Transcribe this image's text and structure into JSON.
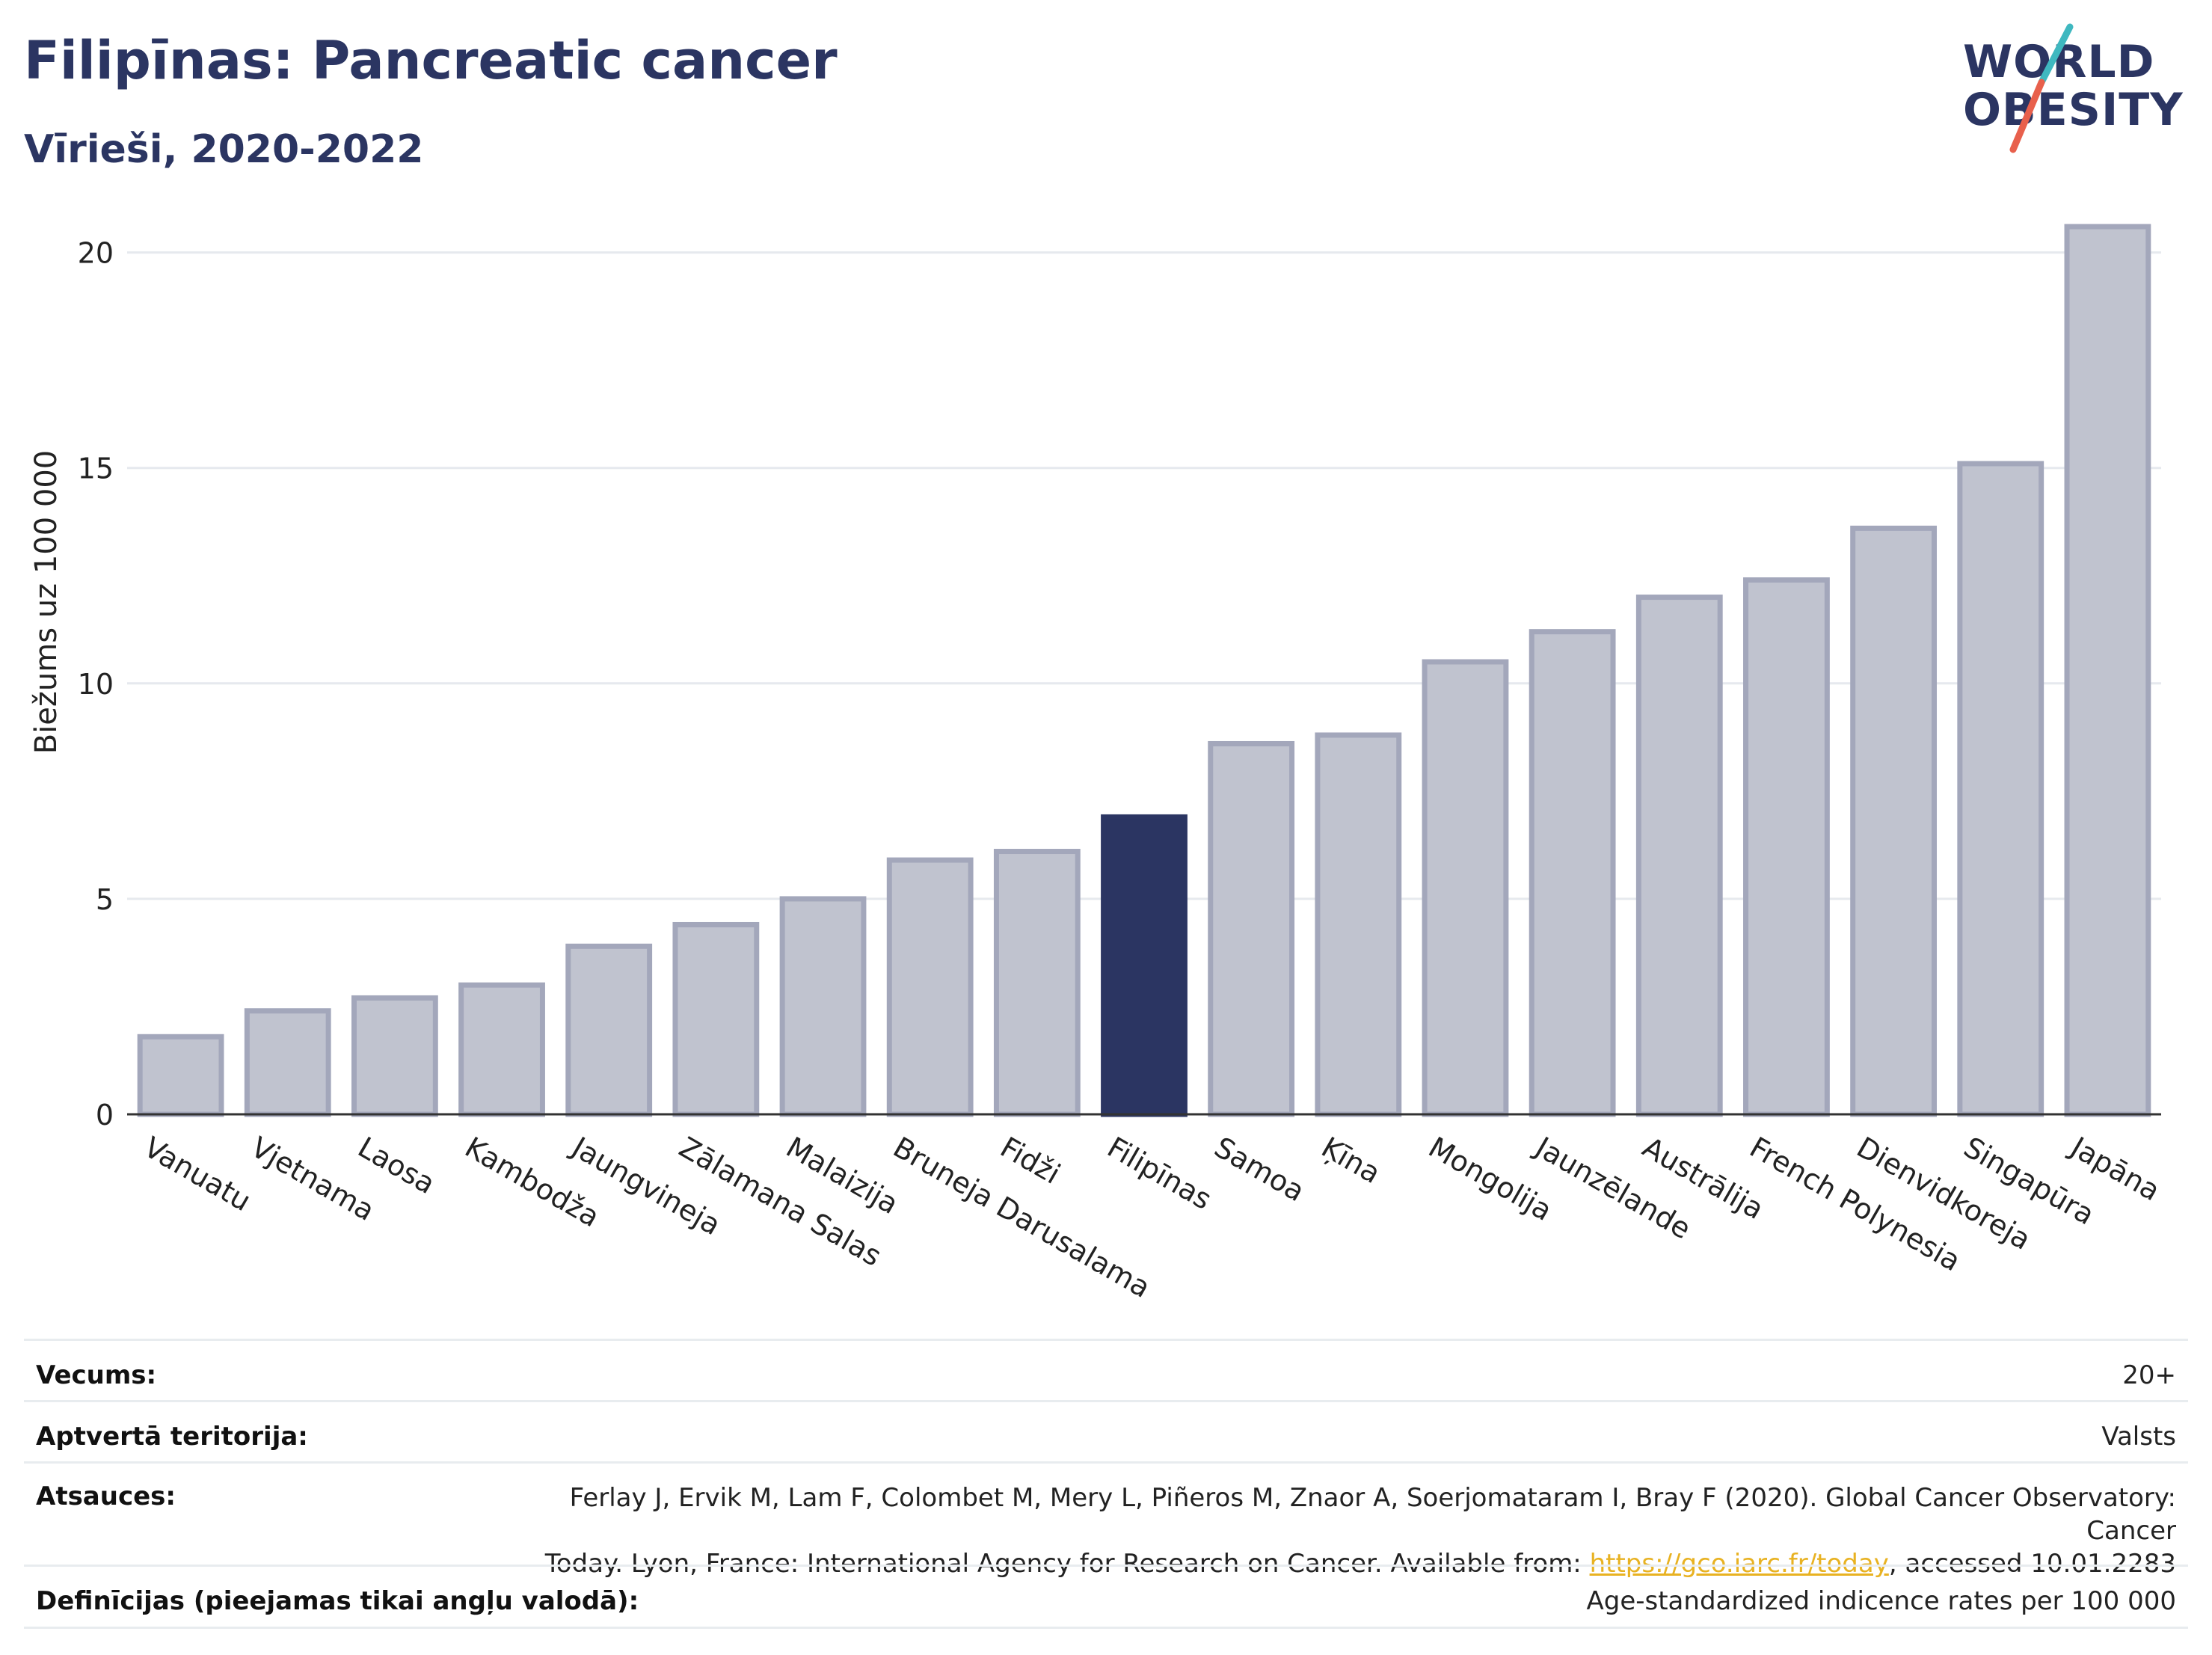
{
  "header": {
    "title": "Filipīnas: Pancreatic cancer",
    "subtitle": "Vīrieši, 2020-2022"
  },
  "logo": {
    "line1": "WORLD",
    "line2": "OBESITY",
    "colors": {
      "navy": "#2b3562",
      "teal": "#3fb8c0",
      "coral": "#e8604c"
    }
  },
  "chart_data": {
    "type": "bar",
    "ylabel": "Biežums uz 100 000",
    "xlabel": "",
    "ylim": [
      0,
      21
    ],
    "yticks": [
      0,
      5,
      10,
      15,
      20
    ],
    "grid": true,
    "categories": [
      "Vanuatu",
      "Vjetnama",
      "Laosa",
      "Kambodža",
      "Jaungvineja",
      "Zālamana Salas",
      "Malaizija",
      "Bruneja Darusalama",
      "Fidži",
      "Filipīnas",
      "Samoa",
      "Ķīna",
      "Mongolija",
      "Jaunzēlande",
      "Austrālija",
      "French Polynesia",
      "Dienvidkoreja",
      "Singapūra",
      "Japāna"
    ],
    "values": [
      1.8,
      2.4,
      2.7,
      3.0,
      3.9,
      4.4,
      5.0,
      5.9,
      6.1,
      6.9,
      8.6,
      8.8,
      10.5,
      11.2,
      12.0,
      12.4,
      13.6,
      15.1,
      20.6
    ],
    "highlight": "Filipīnas",
    "colors": {
      "bar": "#c0c3cf",
      "bar_border": "#a3a7bb",
      "highlight": "#2b3562"
    }
  },
  "info": {
    "age_label": "Vecums:",
    "age_value": "20+",
    "coverage_label": "Aptvertā teritorija:",
    "coverage_value": "Valsts",
    "refs_label": "Atsauces:",
    "refs_line1": "Ferlay J, Ervik M, Lam F, Colombet M, Mery L, Piñeros M, Znaor A, Soerjomataram I, Bray F (2020). Global Cancer Observatory: Cancer",
    "refs_line2_pre": "Today. Lyon, France: International Agency for Research on Cancer. Available from: ",
    "refs_link": "https://gco.iarc.fr/today",
    "refs_line2_post": ", accessed 10.01.2283",
    "defs_label": "Definīcijas (pieejamas tikai angļu valodā):",
    "defs_value": "Age-standardized indicence rates per 100 000"
  }
}
